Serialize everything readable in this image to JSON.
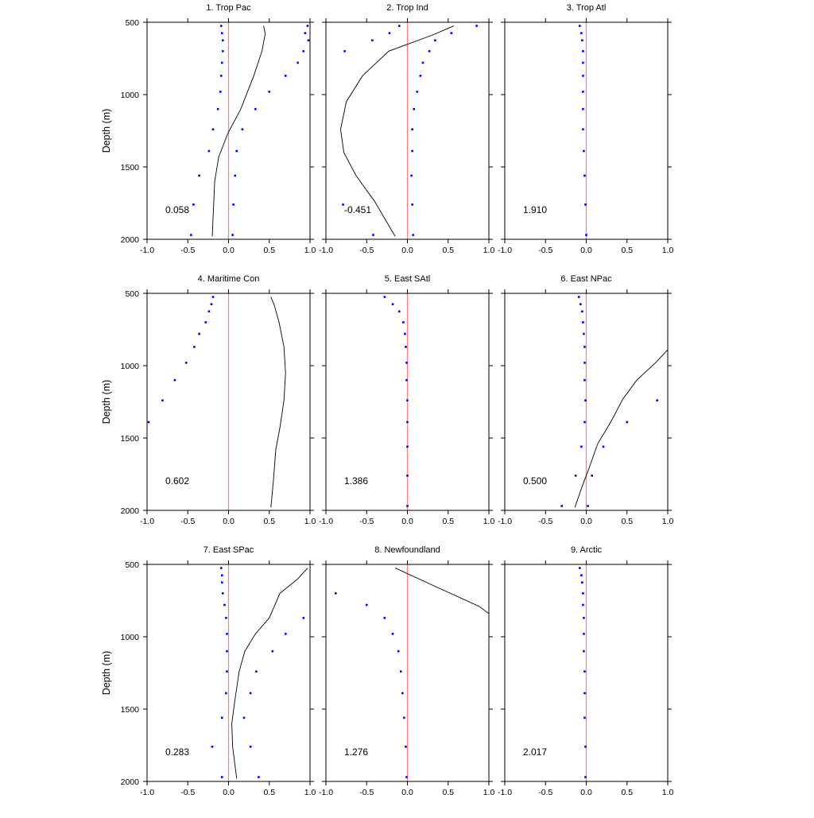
{
  "chart_data": {
    "type": "scatter",
    "ylabel": "Depth (m)",
    "xlim": [
      -1.0,
      1.0
    ],
    "ylim": [
      500,
      2000
    ],
    "yreversed": true,
    "xticks": [
      "-1.0",
      "-0.5",
      "0.0",
      "0.5",
      "1.0"
    ],
    "yticks": [
      "500",
      "1000",
      "1500",
      "2000"
    ],
    "colors": {
      "points": "#0000ff",
      "zero_line": "#ff8080",
      "profile_line": "#000000",
      "frame": "#000000"
    },
    "panels": [
      {
        "title": "1. Trop Pac",
        "annotation": "0.058",
        "depths": [
          525,
          575,
          625,
          700,
          780,
          870,
          980,
          1100,
          1240,
          1390,
          1560,
          1760,
          1970
        ],
        "points_a": [
          -0.09,
          -0.08,
          -0.07,
          -0.07,
          -0.08,
          -0.09,
          -0.1,
          -0.13,
          -0.19,
          -0.24,
          -0.36,
          -0.43,
          -0.46
        ],
        "points_b": [
          0.97,
          0.94,
          0.98,
          0.92,
          0.85,
          0.7,
          0.5,
          0.33,
          0.17,
          0.1,
          0.08,
          0.06,
          0.05
        ],
        "line": [
          [
            0.43,
            525
          ],
          [
            0.45,
            580
          ],
          [
            0.41,
            700
          ],
          [
            0.31,
            870
          ],
          [
            0.15,
            1100
          ],
          [
            -0.01,
            1270
          ],
          [
            -0.12,
            1430
          ],
          [
            -0.17,
            1600
          ],
          [
            -0.2,
            1980
          ]
        ]
      },
      {
        "title": "2. Trop Ind",
        "annotation": "-0.451",
        "depths": [
          525,
          575,
          625,
          700,
          780,
          870,
          980,
          1100,
          1240,
          1390,
          1560,
          1760,
          1970
        ],
        "points_a": [
          -0.1,
          -0.22,
          -0.43,
          -0.77
        ],
        "points_b": [
          0.85,
          0.54,
          0.34,
          0.27,
          0.19,
          0.16,
          0.12,
          0.08,
          0.06,
          0.06,
          0.05,
          0.06,
          0.07
        ],
        "points_c": [
          [
            -0.79,
            1760
          ],
          [
            -0.42,
            1970
          ]
        ],
        "line": [
          [
            0.57,
            525
          ],
          [
            0.3,
            590
          ],
          [
            -0.23,
            700
          ],
          [
            -0.55,
            870
          ],
          [
            -0.75,
            1050
          ],
          [
            -0.82,
            1240
          ],
          [
            -0.78,
            1400
          ],
          [
            -0.63,
            1560
          ],
          [
            -0.4,
            1740
          ],
          [
            -0.15,
            1980
          ]
        ]
      },
      {
        "title": "3. Trop Atl",
        "annotation": "1.910",
        "depths": [
          525,
          575,
          625,
          700,
          780,
          870,
          980,
          1100,
          1240,
          1390,
          1560,
          1760,
          1970
        ],
        "points_a": [
          -0.08,
          -0.06,
          -0.05,
          -0.04,
          -0.04,
          -0.04,
          -0.04,
          -0.04,
          -0.04,
          -0.03,
          -0.02,
          -0.01,
          0.0
        ]
      },
      {
        "title": "4. Maritime Con",
        "annotation": "0.602",
        "depths": [
          525,
          575,
          625,
          700,
          780,
          870,
          980,
          1100,
          1240,
          1390
        ],
        "points_a": [
          -0.19,
          -0.21,
          -0.24,
          -0.28,
          -0.36,
          -0.42,
          -0.52,
          -0.66,
          -0.81,
          -0.98
        ],
        "line": [
          [
            0.52,
            525
          ],
          [
            0.56,
            580
          ],
          [
            0.62,
            700
          ],
          [
            0.68,
            870
          ],
          [
            0.7,
            1050
          ],
          [
            0.68,
            1240
          ],
          [
            0.63,
            1430
          ],
          [
            0.58,
            1580
          ],
          [
            0.55,
            1800
          ],
          [
            0.52,
            1980
          ]
        ]
      },
      {
        "title": "5. East SAtl",
        "annotation": "1.386",
        "depths": [
          525,
          575,
          625,
          700,
          780,
          870,
          980,
          1100,
          1240,
          1390,
          1560,
          1760,
          1970
        ],
        "points_a": [
          -0.28,
          -0.18,
          -0.1,
          -0.05,
          -0.03,
          -0.02,
          -0.01,
          -0.01,
          0.0,
          0.0,
          0.0,
          0.0,
          0.0
        ]
      },
      {
        "title": "6. East NPac",
        "annotation": "0.500",
        "depths": [
          525,
          575,
          625,
          700,
          780,
          870,
          980,
          1100,
          1240,
          1390,
          1560,
          1760,
          1970
        ],
        "points_a": [
          -0.09,
          -0.07,
          -0.05,
          -0.04,
          -0.03,
          -0.02,
          -0.02,
          -0.02,
          -0.01,
          -0.02,
          -0.06,
          -0.13,
          -0.3
        ],
        "points_b": [
          0.87,
          0.5,
          0.21,
          0.07,
          0.02
        ],
        "points_b_depths": [
          1240,
          1390,
          1560,
          1760,
          1970
        ],
        "line": [
          [
            1.0,
            890
          ],
          [
            0.85,
            980
          ],
          [
            0.62,
            1100
          ],
          [
            0.45,
            1230
          ],
          [
            0.3,
            1390
          ],
          [
            0.14,
            1540
          ],
          [
            0.04,
            1700
          ],
          [
            -0.06,
            1850
          ],
          [
            -0.14,
            1980
          ]
        ]
      },
      {
        "title": "7. East SPac",
        "annotation": "0.283",
        "depths": [
          525,
          575,
          625,
          700,
          780,
          870,
          980,
          1100,
          1240,
          1390,
          1560,
          1760,
          1970
        ],
        "points_a": [
          -0.09,
          -0.08,
          -0.08,
          -0.07,
          -0.05,
          -0.03,
          -0.02,
          -0.02,
          -0.02,
          -0.03,
          -0.08,
          -0.2,
          -0.08
        ],
        "points_b": [
          0.92,
          0.7,
          0.54,
          0.34,
          0.27,
          0.19,
          0.27,
          0.37
        ],
        "points_b_depths": [
          870,
          980,
          1100,
          1240,
          1390,
          1560,
          1760,
          1970
        ],
        "line": [
          [
            0.97,
            525
          ],
          [
            0.85,
            600
          ],
          [
            0.63,
            700
          ],
          [
            0.5,
            870
          ],
          [
            0.33,
            980
          ],
          [
            0.2,
            1100
          ],
          [
            0.13,
            1240
          ],
          [
            0.08,
            1430
          ],
          [
            0.04,
            1600
          ],
          [
            0.05,
            1760
          ],
          [
            0.1,
            1980
          ]
        ]
      },
      {
        "title": "8. Newfoundland",
        "annotation": "1.276",
        "depths": [
          700,
          780,
          870,
          980,
          1100,
          1240,
          1390,
          1560,
          1760,
          1970
        ],
        "points_a": [
          -0.88,
          -0.5,
          -0.28,
          -0.18,
          -0.11,
          -0.08,
          -0.06,
          -0.04,
          -0.02,
          -0.01
        ],
        "line": [
          [
            -0.15,
            525
          ],
          [
            0.45,
            680
          ],
          [
            0.88,
            790
          ],
          [
            1.0,
            840
          ]
        ]
      },
      {
        "title": "9. Arctic",
        "annotation": "2.017",
        "depths": [
          525,
          575,
          625,
          700,
          780,
          870,
          980,
          1100,
          1240,
          1390,
          1560,
          1760,
          1970
        ],
        "points_a": [
          -0.08,
          -0.06,
          -0.05,
          -0.04,
          -0.04,
          -0.03,
          -0.03,
          -0.03,
          -0.02,
          -0.02,
          -0.02,
          -0.01,
          -0.01
        ]
      }
    ]
  }
}
